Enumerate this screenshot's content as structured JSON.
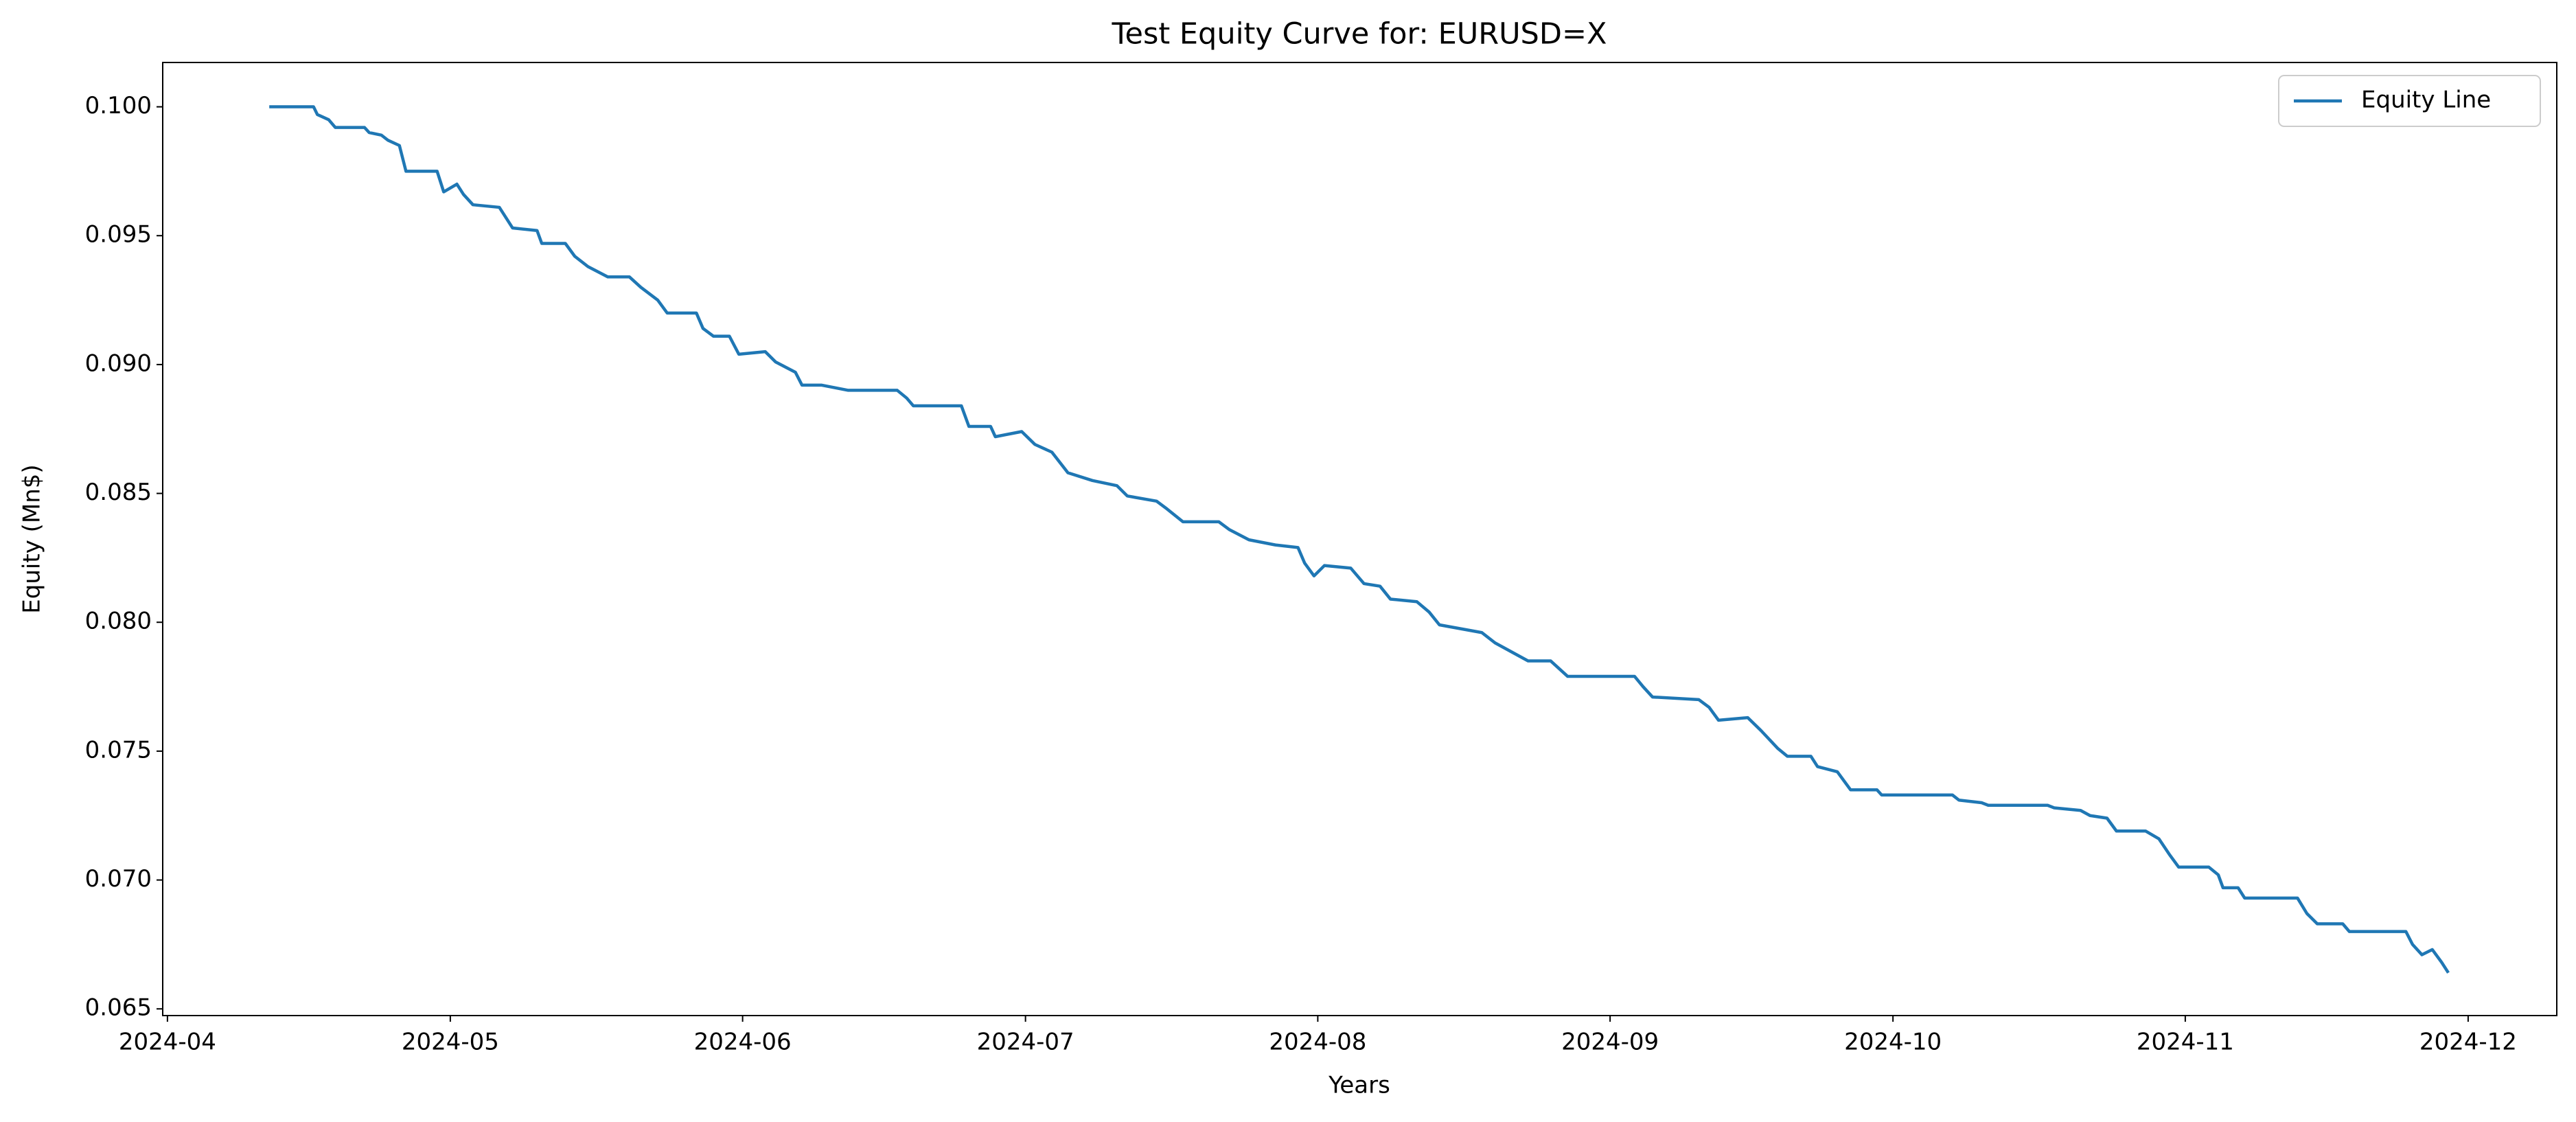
{
  "chart_data": {
    "type": "line",
    "title": "Test Equity Curve for: EURUSD=X",
    "xlabel": "Years",
    "ylabel": "Equity (Mn$)",
    "x": [
      101.8,
      106.5,
      106.9,
      108.1,
      108.8,
      111.9,
      112.4,
      113.7,
      114.4,
      115.6,
      116.3,
      119.6,
      120.3,
      121.7,
      122.4,
      123.4,
      126.2,
      127.6,
      130.2,
      130.7,
      133.2,
      134.2,
      135.6,
      137.7,
      140.0,
      141.2,
      143.0,
      144.0,
      147.1,
      147.8,
      148.9,
      150.6,
      151.6,
      154.4,
      155.5,
      157.6,
      158.3,
      160.4,
      163.2,
      168.4,
      169.4,
      170.1,
      175.2,
      176.0,
      178.3,
      178.8,
      181.6,
      183.0,
      184.8,
      186.5,
      189.1,
      191.7,
      192.8,
      195.9,
      197.0,
      198.7,
      202.5,
      203.6,
      205.7,
      208.5,
      210.9,
      211.6,
      212.6,
      213.7,
      216.5,
      217.9,
      219.6,
      220.7,
      223.5,
      224.8,
      225.9,
      230.4,
      231.8,
      234.3,
      235.3,
      237.7,
      239.5,
      246.6,
      247.5,
      248.5,
      253.4,
      254.5,
      255.5,
      258.6,
      260.0,
      261.8,
      262.8,
      265.3,
      266.0,
      268.1,
      269.5,
      272.3,
      272.8,
      280.3,
      281.0,
      283.4,
      284.1,
      290.4,
      291.1,
      293.9,
      294.9,
      296.7,
      297.7,
      300.8,
      302.2,
      303.3,
      304.3,
      307.5,
      308.5,
      309.0,
      310.6,
      311.3,
      316.9,
      317.9,
      319.0,
      321.7,
      322.4,
      328.4,
      329.1,
      330.1,
      331.2,
      332.2,
      332.9
    ],
    "series": [
      {
        "name": "Equity Line",
        "color": "#1f77b4",
        "values": [
          0.1,
          0.1,
          0.0997,
          0.0995,
          0.0992,
          0.0992,
          0.099,
          0.0989,
          0.0987,
          0.0985,
          0.0975,
          0.0975,
          0.0967,
          0.097,
          0.0966,
          0.0962,
          0.0961,
          0.0953,
          0.0952,
          0.0947,
          0.0947,
          0.0942,
          0.0938,
          0.0934,
          0.0934,
          0.093,
          0.0925,
          0.092,
          0.092,
          0.0914,
          0.0911,
          0.0911,
          0.0904,
          0.0905,
          0.0901,
          0.0897,
          0.0892,
          0.0892,
          0.089,
          0.089,
          0.0887,
          0.0884,
          0.0884,
          0.0876,
          0.0876,
          0.0872,
          0.0874,
          0.0869,
          0.0866,
          0.0858,
          0.0855,
          0.0853,
          0.0849,
          0.0847,
          0.0844,
          0.0839,
          0.0839,
          0.0836,
          0.0832,
          0.083,
          0.0829,
          0.0823,
          0.0818,
          0.0822,
          0.0821,
          0.0815,
          0.0814,
          0.0809,
          0.0808,
          0.0804,
          0.0799,
          0.0796,
          0.0792,
          0.0787,
          0.0785,
          0.0785,
          0.0779,
          0.0779,
          0.0775,
          0.0771,
          0.077,
          0.0767,
          0.0762,
          0.0763,
          0.0758,
          0.0751,
          0.0748,
          0.0748,
          0.0744,
          0.0742,
          0.0735,
          0.0735,
          0.0733,
          0.0733,
          0.0731,
          0.073,
          0.0729,
          0.0729,
          0.0728,
          0.0727,
          0.0725,
          0.0724,
          0.0719,
          0.0719,
          0.0716,
          0.071,
          0.0705,
          0.0705,
          0.0702,
          0.0697,
          0.0697,
          0.0693,
          0.0693,
          0.0687,
          0.0683,
          0.0683,
          0.068,
          0.068,
          0.0675,
          0.0671,
          0.0673,
          0.0668,
          0.0664
        ]
      }
    ],
    "xlim": [
      90.5,
      344.4
    ],
    "xticks": [
      {
        "value": 91,
        "label": "2024-04"
      },
      {
        "value": 121,
        "label": "2024-05"
      },
      {
        "value": 152,
        "label": "2024-06"
      },
      {
        "value": 182,
        "label": "2024-07"
      },
      {
        "value": 213,
        "label": "2024-08"
      },
      {
        "value": 244,
        "label": "2024-09"
      },
      {
        "value": 274,
        "label": "2024-10"
      },
      {
        "value": 305,
        "label": "2024-11"
      },
      {
        "value": 335,
        "label": "2024-12"
      }
    ],
    "ylim": [
      0.06474,
      0.10172
    ],
    "yticks": [
      {
        "value": 0.065,
        "label": "0.065"
      },
      {
        "value": 0.07,
        "label": "0.070"
      },
      {
        "value": 0.075,
        "label": "0.075"
      },
      {
        "value": 0.08,
        "label": "0.080"
      },
      {
        "value": 0.085,
        "label": "0.085"
      },
      {
        "value": 0.09,
        "label": "0.090"
      },
      {
        "value": 0.095,
        "label": "0.095"
      },
      {
        "value": 0.1,
        "label": "0.100"
      }
    ],
    "legend": "upper right",
    "grid": false
  }
}
